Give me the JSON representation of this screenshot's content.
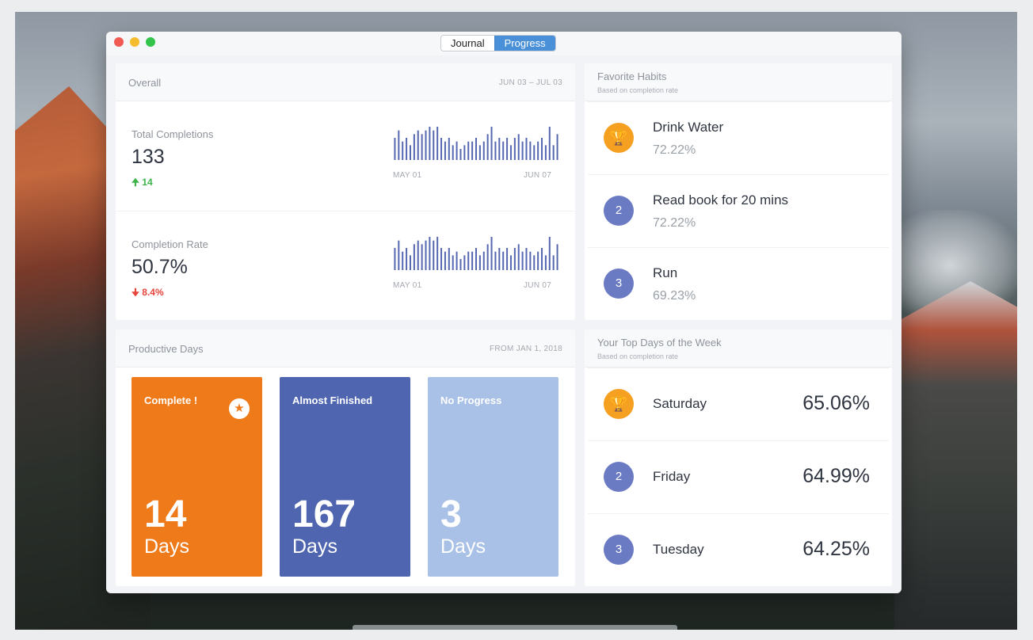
{
  "window": {
    "tabs": [
      {
        "label": "Journal",
        "active": false
      },
      {
        "label": "Progress",
        "active": true
      }
    ]
  },
  "overall": {
    "title": "Overall",
    "date_range": "JUN 03 – JUL 03",
    "metrics": [
      {
        "label": "Total Completions",
        "value": "133",
        "delta": "14",
        "delta_direction": "up",
        "spark_start": "MAY 01",
        "spark_end": "JUN 07",
        "spark_values": [
          6,
          8,
          5,
          6,
          4,
          7,
          8,
          7,
          8,
          9,
          8,
          9,
          6,
          5,
          6,
          4,
          5,
          3,
          4,
          5,
          5,
          6,
          4,
          5,
          7,
          9,
          5,
          6,
          5,
          6,
          4,
          6,
          7,
          5,
          6,
          5,
          4,
          5,
          6,
          4,
          9,
          4,
          7
        ]
      },
      {
        "label": "Completion Rate",
        "value": "50.7%",
        "delta": "8.4%",
        "delta_direction": "down",
        "spark_start": "MAY 01",
        "spark_end": "JUN 07",
        "spark_values": [
          6,
          8,
          5,
          6,
          4,
          7,
          8,
          7,
          8,
          9,
          8,
          9,
          6,
          5,
          6,
          4,
          5,
          3,
          4,
          5,
          5,
          6,
          4,
          5,
          7,
          9,
          5,
          6,
          5,
          6,
          4,
          6,
          7,
          5,
          6,
          5,
          4,
          5,
          6,
          4,
          9,
          4,
          7
        ]
      }
    ]
  },
  "productive_days": {
    "title": "Productive Days",
    "since": "FROM JAN 1, 2018",
    "tiles": [
      {
        "label": "Complete !",
        "number": "14",
        "unit": "Days",
        "color": "#ef7a1a",
        "icon": "star-icon"
      },
      {
        "label": "Almost Finished",
        "number": "167",
        "unit": "Days",
        "color": "#4f65b0"
      },
      {
        "label": "No Progress",
        "number": "3",
        "unit": "Days",
        "color": "#a9c1e6"
      }
    ]
  },
  "favorite_habits": {
    "title": "Favorite Habits",
    "subtitle": "Based on completion rate",
    "items": [
      {
        "rank": "1",
        "name": "Drink Water",
        "rate": "72.22%",
        "icon": "trophy-icon"
      },
      {
        "rank": "2",
        "name": "Read book for 20 mins",
        "rate": "72.22%"
      },
      {
        "rank": "3",
        "name": "Run",
        "rate": "69.23%"
      }
    ]
  },
  "top_days": {
    "title": "Your Top Days of the Week",
    "subtitle": "Based on completion rate",
    "items": [
      {
        "rank": "1",
        "day": "Saturday",
        "rate": "65.06%",
        "icon": "trophy-icon"
      },
      {
        "rank": "2",
        "day": "Friday",
        "rate": "64.99%"
      },
      {
        "rank": "3",
        "day": "Tuesday",
        "rate": "64.25%"
      }
    ]
  },
  "colors": {
    "accent": "#4a90d9",
    "bar": "#5567b0",
    "trophy": "#f6a021",
    "rank_badge": "#6a7bc4"
  }
}
